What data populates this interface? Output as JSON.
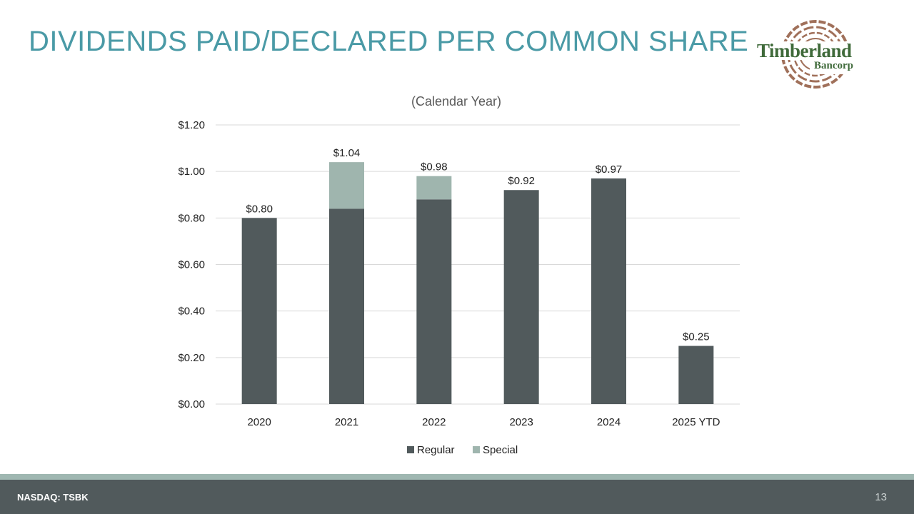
{
  "slide": {
    "title": "DIVIDENDS PAID/DECLARED PER COMMON SHARE",
    "footer_ticker": "NASDAQ: TSBK",
    "page_number": "13"
  },
  "logo": {
    "name_line1": "Timberland",
    "name_line2": "Bancorp",
    "colors": {
      "text": "#3f6a3a",
      "rings": "#a0705a"
    }
  },
  "colors": {
    "title": "#4a9aa6",
    "regular": "#515a5c",
    "special": "#9fb5ae",
    "footer_bar": "#515a5c",
    "footer_stripe": "#9fb7b1"
  },
  "chart_data": {
    "type": "bar",
    "stacked": true,
    "title": "(Calendar Year)",
    "categories": [
      "2020",
      "2021",
      "2022",
      "2023",
      "2024",
      "2025 YTD"
    ],
    "series": [
      {
        "name": "Regular",
        "values": [
          0.8,
          0.84,
          0.88,
          0.92,
          0.97,
          0.25
        ]
      },
      {
        "name": "Special",
        "values": [
          0,
          0.2,
          0.1,
          0,
          0,
          0
        ]
      }
    ],
    "data_labels": [
      "$0.80",
      "$1.04",
      "$0.98",
      "$0.92",
      "$0.97",
      "$0.25"
    ],
    "ylim": [
      0,
      1.2
    ],
    "yticks": [
      0,
      0.2,
      0.4,
      0.6,
      0.8,
      1.0,
      1.2
    ],
    "ytick_labels": [
      "$0.00",
      "$0.20",
      "$0.40",
      "$0.60",
      "$0.80",
      "$1.00",
      "$1.20"
    ],
    "xlabel": "",
    "ylabel": "",
    "grid": true,
    "legend": {
      "position": "bottom",
      "entries": [
        "Regular",
        "Special"
      ]
    }
  }
}
